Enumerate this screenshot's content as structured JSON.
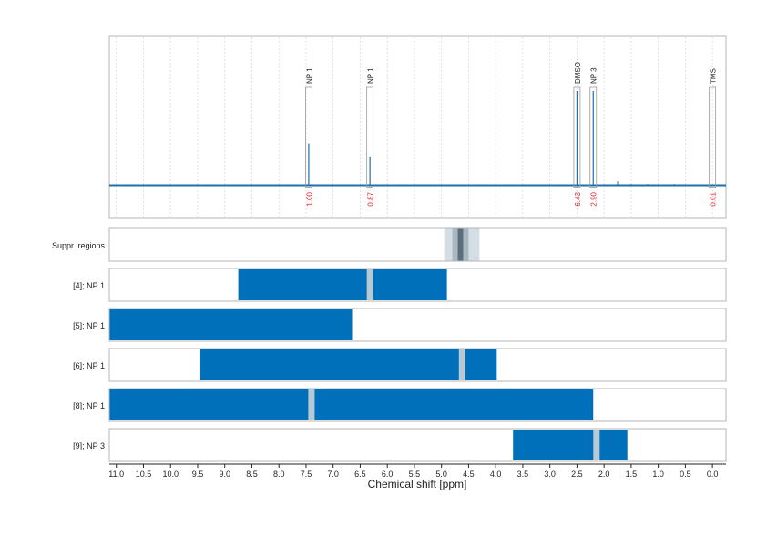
{
  "chart_data": {
    "type": "nmr-spectrum",
    "xlabel": "Chemical shift [ppm]",
    "x_ticks": [
      "11.0",
      "10.5",
      "10.0",
      "9.5",
      "9.0",
      "8.5",
      "8.0",
      "7.5",
      "7.0",
      "6.5",
      "6.0",
      "5.5",
      "5.0",
      "4.5",
      "4.0",
      "3.5",
      "3.0",
      "2.5",
      "2.0",
      "1.5",
      "1.0",
      "0.5",
      "0.0"
    ],
    "x_tick_values": [
      11.0,
      10.5,
      10.0,
      9.5,
      9.0,
      8.5,
      8.0,
      7.5,
      7.0,
      6.5,
      6.0,
      5.5,
      5.0,
      4.5,
      4.0,
      3.5,
      3.0,
      2.5,
      2.0,
      1.5,
      1.0,
      0.5,
      0.0
    ],
    "xlim": [
      11.13,
      -0.25
    ],
    "x_reversed": true,
    "grid": true,
    "colors": {
      "spectrum": "#1f6fa8",
      "region": "#0070bb",
      "gap": "#b8c9d6",
      "integral_text": "#e0202a",
      "supp_light": "#d4dde4",
      "supp_mid": "#a9b7c2",
      "supp_dark": "#5b6e7d"
    },
    "peaks": [
      {
        "label": "NP 1",
        "ppm": 7.45,
        "height": 0.32,
        "integral": "1.00"
      },
      {
        "label": "NP 1",
        "ppm": 6.32,
        "height": 0.22,
        "integral": "0.87"
      },
      {
        "label": "DMSO",
        "ppm": 2.5,
        "height": 0.95,
        "integral": "6.43"
      },
      {
        "label": "NP 3",
        "ppm": 2.2,
        "height": 0.95,
        "integral": "2.90"
      },
      {
        "label": "TMS",
        "ppm": 0.0,
        "height": 0.0,
        "integral": "0.01"
      }
    ],
    "baseline_features": [
      {
        "ppm": 1.75,
        "height": 0.03
      },
      {
        "ppm": 1.5,
        "height": 0.01
      },
      {
        "ppm": 1.2,
        "height": 0.01
      },
      {
        "ppm": 0.7,
        "height": 0.01
      }
    ],
    "suppressed_regions": {
      "label": "Suppr. regions",
      "bands": [
        {
          "from": 4.95,
          "to": 4.3,
          "shade": "light"
        },
        {
          "from": 4.8,
          "to": 4.5,
          "shade": "mid"
        },
        {
          "from": 4.7,
          "to": 4.6,
          "shade": "dark"
        }
      ]
    },
    "regions": [
      {
        "label": "[4]; NP 1",
        "from": 8.75,
        "to": 4.9,
        "gaps": [
          6.32
        ]
      },
      {
        "label": "[5]; NP 1",
        "from": 11.13,
        "to": 6.65,
        "gaps": []
      },
      {
        "label": "[6]; NP 1",
        "from": 9.45,
        "to": 3.98,
        "gaps": [
          4.62
        ]
      },
      {
        "label": "[8]; NP 1",
        "from": 11.13,
        "to": 2.2,
        "gaps": [
          7.4
        ]
      },
      {
        "label": "[9]; NP 3",
        "from": 3.68,
        "to": 1.57,
        "gaps": [
          2.14
        ]
      }
    ]
  }
}
